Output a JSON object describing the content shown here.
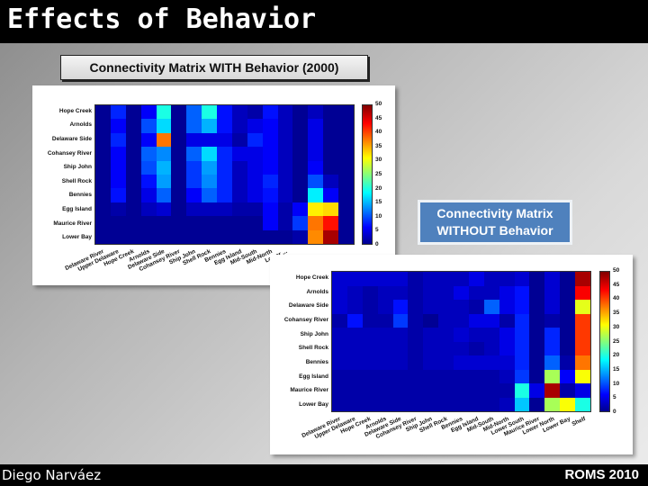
{
  "slide": {
    "title": "Effects of Behavior",
    "footer_left": "Diego Narváez",
    "footer_right": "ROMS 2010",
    "label_with": "Connectivity Matrix WITH Behavior (2000)",
    "label_without_line1": "Connectivity Matrix",
    "label_without_line2": "WITHOUT Behavior"
  },
  "chart_data": [
    {
      "type": "heatmap",
      "title": "Connectivity Matrix WITH Behavior (2000)",
      "rows": [
        "Hope Creek",
        "Arnolds",
        "Delaware Side",
        "Cohansey River",
        "Ship John",
        "Shell Rock",
        "Bennies",
        "Egg Island",
        "Maurice River",
        "Lower Bay"
      ],
      "columns": [
        "Delaware River",
        "Upper Delaware",
        "Hope Creek",
        "Arnolds",
        "Delaware Side",
        "Cohansey River",
        "Ship John",
        "Shell Rock",
        "Bennies",
        "Egg Island",
        "Mid-South",
        "Mid-North",
        "Lower ...",
        "",
        "",
        "",
        ""
      ],
      "colorbar": {
        "min": 0,
        "max": 50,
        "ticks": [
          0,
          5,
          10,
          15,
          20,
          25,
          30,
          35,
          40,
          45,
          50
        ],
        "colormap": "jet"
      },
      "values": [
        [
          1,
          8,
          1,
          6,
          20,
          1,
          11,
          20,
          7,
          3,
          2,
          7,
          3,
          1,
          3,
          1,
          1
        ],
        [
          1,
          6,
          1,
          10,
          17,
          1,
          11,
          15,
          7,
          3,
          5,
          6,
          3,
          1,
          5,
          1,
          1
        ],
        [
          1,
          8,
          1,
          6,
          38,
          1,
          5,
          5,
          5,
          2,
          8,
          6,
          3,
          1,
          5,
          1,
          1
        ],
        [
          1,
          6,
          1,
          11,
          13,
          1,
          11,
          17,
          8,
          5,
          5,
          6,
          3,
          1,
          5,
          1,
          1
        ],
        [
          1,
          6,
          1,
          10,
          15,
          1,
          9,
          14,
          8,
          3,
          5,
          6,
          3,
          1,
          6,
          1,
          1
        ],
        [
          1,
          6,
          1,
          7,
          14,
          1,
          9,
          13,
          8,
          3,
          5,
          8,
          3,
          1,
          10,
          3,
          1
        ],
        [
          1,
          7,
          1,
          5,
          11,
          1,
          6,
          11,
          8,
          3,
          5,
          7,
          3,
          1,
          18,
          6,
          1
        ],
        [
          1,
          2,
          1,
          3,
          4,
          1,
          3,
          3,
          3,
          2,
          2,
          6,
          2,
          6,
          32,
          33,
          1
        ],
        [
          1,
          1,
          1,
          1,
          1,
          1,
          1,
          1,
          1,
          1,
          1,
          6,
          2,
          9,
          38,
          43,
          1
        ],
        [
          1,
          1,
          1,
          1,
          1,
          1,
          1,
          1,
          1,
          1,
          1,
          1,
          1,
          2,
          37,
          48,
          1
        ]
      ]
    },
    {
      "type": "heatmap",
      "title": "Connectivity Matrix WITHOUT Behavior",
      "rows": [
        "Hope Creek",
        "Arnolds",
        "Delaware Side",
        "Cohansey River",
        "Ship John",
        "Shell Rock",
        "Bennies",
        "Egg Island",
        "Maurice River",
        "Lower Bay"
      ],
      "columns": [
        "Delaware River",
        "Upper Delaware",
        "Hope Creek",
        "Arnolds",
        "Delaware Side",
        "Cohansey River",
        "Ship John",
        "Shell Rock",
        "Bennies",
        "Egg Island",
        "Mid-South",
        "Mid-North",
        "Lower South",
        "Maurice River",
        "Lower North",
        "Lower Bay",
        "Shelf"
      ],
      "colorbar": {
        "min": 0,
        "max": 50,
        "ticks": [
          0,
          5,
          10,
          15,
          20,
          25,
          30,
          35,
          40,
          45,
          50
        ],
        "colormap": "jet"
      },
      "values": [
        [
          4,
          4,
          4,
          4,
          4,
          2,
          3,
          3,
          3,
          5,
          3,
          3,
          4,
          1,
          4,
          1,
          48
        ],
        [
          4,
          3,
          2,
          3,
          3,
          2,
          3,
          3,
          5,
          3,
          3,
          5,
          7,
          1,
          4,
          1,
          44
        ],
        [
          4,
          3,
          2,
          3,
          7,
          2,
          3,
          3,
          3,
          2,
          11,
          5,
          7,
          1,
          4,
          1,
          30
        ],
        [
          2,
          7,
          2,
          2,
          9,
          2,
          1,
          3,
          3,
          5,
          5,
          2,
          8,
          1,
          2,
          1,
          41
        ],
        [
          3,
          3,
          3,
          3,
          3,
          2,
          3,
          3,
          4,
          3,
          3,
          5,
          8,
          1,
          8,
          1,
          41
        ],
        [
          3,
          3,
          3,
          3,
          3,
          2,
          3,
          3,
          3,
          2,
          3,
          5,
          8,
          1,
          8,
          1,
          41
        ],
        [
          3,
          3,
          3,
          3,
          3,
          2,
          3,
          3,
          4,
          4,
          4,
          4,
          8,
          1,
          11,
          2,
          38
        ],
        [
          2,
          2,
          2,
          2,
          2,
          2,
          2,
          2,
          2,
          2,
          2,
          3,
          9,
          1,
          27,
          6,
          31
        ],
        [
          2,
          2,
          2,
          2,
          2,
          2,
          2,
          2,
          2,
          2,
          2,
          2,
          20,
          5,
          48,
          2,
          5
        ],
        [
          2,
          2,
          2,
          2,
          2,
          2,
          2,
          2,
          2,
          2,
          2,
          3,
          16,
          1,
          27,
          31,
          20
        ]
      ]
    }
  ]
}
